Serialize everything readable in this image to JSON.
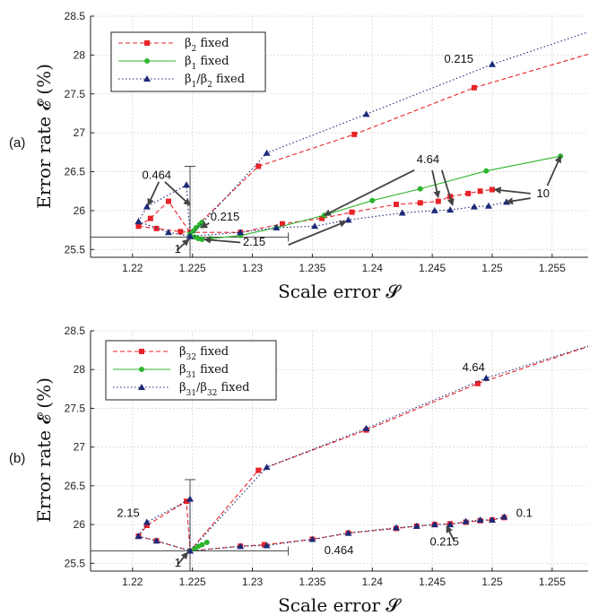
{
  "chart_data": [
    {
      "type": "line",
      "panel_label": "(a)",
      "xlabel": "Scale error 𝓢",
      "ylabel": "Error rate 𝓔 (%)",
      "xlim": [
        1.2165,
        1.258
      ],
      "ylim": [
        25.4,
        28.5
      ],
      "xticks": [
        1.22,
        1.225,
        1.23,
        1.235,
        1.24,
        1.245,
        1.25,
        1.255
      ],
      "yticks": [
        25.5,
        26,
        26.5,
        27,
        27.5,
        28,
        28.5
      ],
      "grid": true,
      "legend": "top-left",
      "series": [
        {
          "name": "β2 fixed",
          "name_base": "β",
          "name_sub": "2",
          "name_suffix": " fixed",
          "color": "#e8232a",
          "dash": "5,3",
          "marker": "square",
          "x": [
            1.2205,
            1.2215,
            1.223,
            1.2248,
            1.2305,
            1.2385,
            1.2485,
            1.26,
            1.2205,
            1.222,
            1.224,
            1.229,
            1.2325,
            1.2358,
            1.2383,
            1.242,
            1.244,
            1.2455,
            1.2465,
            1.248,
            1.249,
            1.25
          ],
          "y": [
            25.8,
            25.9,
            26.12,
            25.72,
            26.57,
            26.98,
            27.58,
            28.1,
            25.8,
            25.77,
            25.73,
            25.72,
            25.83,
            25.9,
            25.98,
            26.08,
            26.1,
            26.12,
            26.18,
            26.22,
            26.25,
            26.27
          ],
          "segments": [
            [
              0,
              1,
              2,
              3,
              4,
              5,
              6,
              7
            ],
            [
              8,
              9,
              10,
              3,
              11,
              12,
              13,
              14,
              15,
              16,
              17,
              18,
              19,
              20,
              21
            ]
          ],
          "marked": [
            0,
            1,
            2,
            3,
            4,
            5,
            6,
            9,
            10,
            11,
            12,
            13,
            14,
            15,
            16,
            17,
            18,
            19,
            20,
            21
          ]
        },
        {
          "name": "β1 fixed",
          "name_base": "β",
          "name_sub": "1",
          "name_suffix": " fixed",
          "color": "#2db52d",
          "dash": "",
          "marker": "circle",
          "x": [
            1.2248,
            1.2252,
            1.2255,
            1.2258,
            1.2265,
            1.229,
            1.232,
            1.236,
            1.24,
            1.244,
            1.2495,
            1.2557,
            1.2248,
            1.2251,
            1.2253,
            1.2256,
            1.2258
          ],
          "y": [
            25.7,
            25.66,
            25.64,
            25.63,
            25.64,
            25.68,
            25.78,
            25.94,
            26.13,
            26.28,
            26.51,
            26.7,
            25.7,
            25.74,
            25.78,
            25.82,
            25.85
          ],
          "segments": [
            [
              0,
              1,
              2,
              3,
              4,
              5,
              6,
              7,
              8,
              9,
              10,
              11
            ],
            [
              12,
              13,
              14,
              15,
              16
            ]
          ],
          "marked": [
            0,
            1,
            2,
            3,
            4,
            5,
            6,
            7,
            8,
            9,
            10,
            11,
            12,
            13,
            14,
            15,
            16
          ]
        },
        {
          "name": "β1/β2 fixed",
          "name_base": "β",
          "name_sub": "1",
          "name_mid": "/β",
          "name_sub2": "2",
          "name_suffix": " fixed",
          "color": "#1c2a78",
          "dash": "1.5,2.5",
          "marker": "triangle",
          "x": [
            1.2205,
            1.2212,
            1.2245,
            1.2248,
            1.2312,
            1.2395,
            1.25,
            1.26,
            1.2205,
            1.223,
            1.2248,
            1.229,
            1.232,
            1.2352,
            1.238,
            1.2425,
            1.2452,
            1.2465,
            1.2485,
            1.2497,
            1.2512
          ],
          "y": [
            25.86,
            26.05,
            26.33,
            25.67,
            26.74,
            27.24,
            27.88,
            28.4,
            25.86,
            25.72,
            25.67,
            25.72,
            25.78,
            25.8,
            25.88,
            25.97,
            26.0,
            26.01,
            26.05,
            26.06,
            26.11
          ],
          "segments": [
            [
              0,
              1,
              2,
              3,
              4,
              5,
              6,
              7
            ],
            [
              8,
              9,
              10,
              11,
              12,
              13,
              14,
              15,
              16,
              17,
              18,
              19,
              20
            ]
          ],
          "marked": [
            0,
            1,
            2,
            3,
            4,
            5,
            6,
            8,
            9,
            10,
            11,
            12,
            13,
            14,
            15,
            16,
            17,
            18,
            19,
            20
          ]
        }
      ],
      "crosshair": {
        "x": 1.2248,
        "y": 25.66,
        "x_from": 1.2165,
        "x_to": 1.233,
        "y_from": 25.4,
        "y_to": 26.57
      },
      "annotations": [
        {
          "text": "0.464",
          "tx": 1.2208,
          "ty": 26.41,
          "arrows": [
            [
              1.2222,
              26.37,
              1.2213,
              26.07
            ],
            [
              1.2227,
              26.37,
              1.2248,
              26.07
            ]
          ]
        },
        {
          "text": "0.215",
          "tx": 1.2265,
          "ty": 25.87,
          "arrows": [
            [
              1.2264,
              25.84,
              1.2257,
              25.78
            ]
          ]
        },
        {
          "text": "1",
          "tx": 1.2235,
          "ty": 25.46,
          "arrows": [
            [
              1.2237,
              25.49,
              1.2247,
              25.63
            ]
          ]
        },
        {
          "text": "2.15",
          "tx": 1.2292,
          "ty": 25.55,
          "arrows": [
            [
              1.229,
              25.59,
              1.226,
              25.63
            ],
            [
              1.233,
              25.56,
              1.2378,
              25.86
            ]
          ]
        },
        {
          "text": "4.64",
          "tx": 1.2437,
          "ty": 26.61,
          "arrows": [
            [
              1.2435,
              26.52,
              1.236,
              25.94
            ],
            [
              1.245,
              26.52,
              1.2455,
              26.17
            ],
            [
              1.2458,
              26.52,
              1.2467,
              26.07
            ]
          ]
        },
        {
          "text": "10",
          "tx": 1.2537,
          "ty": 26.17,
          "arrows": [
            [
              1.2532,
              26.22,
              1.2502,
              26.27
            ],
            [
              1.2532,
              26.16,
              1.2512,
              26.11
            ],
            [
              1.2546,
              26.32,
              1.2557,
              26.7
            ]
          ]
        },
        {
          "text": "0.215",
          "tx": 1.246,
          "ty": 27.9,
          "arrows": []
        }
      ]
    },
    {
      "type": "line",
      "panel_label": "(b)",
      "xlabel": "Scale error 𝓢",
      "ylabel": "Error rate 𝓔 (%)",
      "xlim": [
        1.2165,
        1.258
      ],
      "ylim": [
        25.4,
        28.5
      ],
      "xticks": [
        1.22,
        1.225,
        1.23,
        1.235,
        1.24,
        1.245,
        1.25,
        1.255
      ],
      "yticks": [
        25.5,
        26,
        26.5,
        27,
        27.5,
        28,
        28.5
      ],
      "grid": true,
      "legend": "top-left",
      "series": [
        {
          "name": "β32 fixed",
          "name_base": "β",
          "name_sub": "32",
          "name_suffix": " fixed",
          "color": "#e8232a",
          "dash": "5,3",
          "marker": "square",
          "x": [
            1.2205,
            1.2212,
            1.2245,
            1.2248,
            1.2305,
            1.2395,
            1.2488,
            1.26,
            1.2205,
            1.222,
            1.2248,
            1.229,
            1.231,
            1.235,
            1.238,
            1.242,
            1.2437,
            1.2452,
            1.2465,
            1.2478,
            1.249,
            1.25,
            1.251
          ],
          "y": [
            25.85,
            25.99,
            26.3,
            25.66,
            26.7,
            27.22,
            27.82,
            28.4,
            25.85,
            25.79,
            25.66,
            25.72,
            25.74,
            25.81,
            25.89,
            25.95,
            25.98,
            26.0,
            26.01,
            26.03,
            26.05,
            26.06,
            26.09
          ],
          "segments": [
            [
              0,
              1,
              2,
              3,
              4,
              5,
              6,
              7
            ],
            [
              8,
              9,
              10,
              11,
              12,
              13,
              14,
              15,
              16,
              17,
              18,
              19,
              20,
              21,
              22
            ]
          ],
          "marked": [
            0,
            1,
            2,
            3,
            4,
            5,
            6,
            9,
            10,
            11,
            12,
            13,
            14,
            15,
            16,
            17,
            18,
            19,
            20,
            21,
            22
          ]
        },
        {
          "name": "β31 fixed",
          "name_base": "β",
          "name_sub": "31",
          "name_suffix": " fixed",
          "color": "#2db52d",
          "dash": "",
          "marker": "circle",
          "x": [
            1.2248,
            1.2252,
            1.2255,
            1.2258,
            1.2262
          ],
          "y": [
            25.66,
            25.69,
            25.72,
            25.74,
            25.77
          ],
          "segments": [
            [
              0,
              1,
              2,
              3,
              4
            ]
          ],
          "marked": [
            0,
            1,
            2,
            3,
            4
          ]
        },
        {
          "name": "β31/β32 fixed",
          "name_base": "β",
          "name_sub": "31",
          "name_mid": "/β",
          "name_sub2": "32",
          "name_suffix": " fixed",
          "color": "#1c2a78",
          "dash": "1.5,2.5",
          "marker": "triangle",
          "x": [
            1.2205,
            1.2212,
            1.2248,
            1.2248,
            1.2312,
            1.2395,
            1.2495,
            1.26,
            1.2205,
            1.222,
            1.2248,
            1.229,
            1.2312,
            1.235,
            1.238,
            1.242,
            1.2437,
            1.2452,
            1.2465,
            1.2478,
            1.249,
            1.25,
            1.251
          ],
          "y": [
            25.85,
            26.03,
            26.33,
            25.66,
            26.74,
            27.24,
            27.89,
            28.4,
            25.85,
            25.79,
            25.66,
            25.72,
            25.73,
            25.81,
            25.89,
            25.96,
            25.98,
            26.0,
            26.0,
            26.04,
            26.06,
            26.06,
            26.1
          ],
          "segments": [
            [
              0,
              1,
              2,
              3,
              4,
              5,
              6,
              7
            ],
            [
              8,
              9,
              10,
              11,
              12,
              13,
              14,
              15,
              16,
              17,
              18,
              19,
              20,
              21,
              22
            ]
          ],
          "marked": [
            0,
            1,
            2,
            4,
            5,
            6,
            8,
            9,
            10,
            11,
            12,
            13,
            14,
            15,
            16,
            17,
            18,
            19,
            20,
            21,
            22
          ]
        }
      ],
      "crosshair": {
        "x": 1.2248,
        "y": 25.66,
        "x_from": 1.2165,
        "x_to": 1.233,
        "y_from": 25.4,
        "y_to": 26.58
      },
      "annotations": [
        {
          "text": "2.15",
          "tx": 1.2187,
          "ty": 26.1,
          "arrows": []
        },
        {
          "text": "1",
          "tx": 1.2235,
          "ty": 25.46,
          "arrows": [
            [
              1.2238,
              25.49,
              1.2246,
              25.64
            ]
          ]
        },
        {
          "text": "0.464",
          "tx": 1.236,
          "ty": 25.62,
          "arrows": []
        },
        {
          "text": "0.215",
          "tx": 1.2448,
          "ty": 25.73,
          "arrows": [
            [
              1.2468,
              25.8,
              1.2462,
              25.98
            ]
          ]
        },
        {
          "text": "0.1",
          "tx": 1.252,
          "ty": 26.1,
          "arrows": []
        },
        {
          "text": "4.64",
          "tx": 1.2475,
          "ty": 27.98,
          "arrows": []
        }
      ]
    }
  ]
}
